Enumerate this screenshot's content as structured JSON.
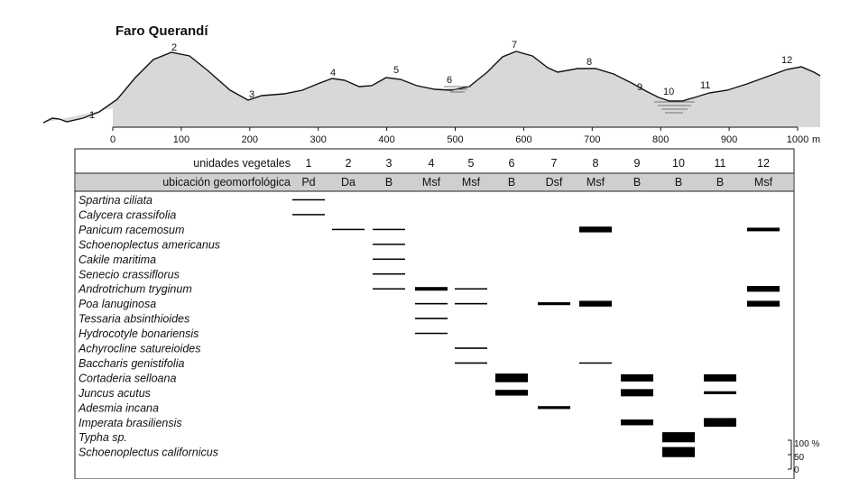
{
  "figure": {
    "title": "Faro Querandí",
    "distance_unit": "m",
    "x_ticks": [
      "0",
      "100",
      "200",
      "300",
      "400",
      "500",
      "600",
      "700",
      "800",
      "900",
      "1000"
    ],
    "profile_points": [
      "1",
      "2",
      "3",
      "4",
      "5",
      "6",
      "7",
      "8",
      "9",
      "10",
      "11",
      "12"
    ],
    "legend_scale": [
      "100 %",
      "50",
      "0"
    ]
  },
  "table": {
    "row_header_units": "unidades vegetales",
    "row_header_location": "ubicación geomorfológica",
    "units": [
      "1",
      "2",
      "3",
      "4",
      "5",
      "6",
      "7",
      "8",
      "9",
      "10",
      "11",
      "12"
    ],
    "locations": [
      "Pd",
      "Da",
      "B",
      "Msf",
      "Msf",
      "B",
      "Dsf",
      "Msf",
      "B",
      "B",
      "B",
      "Msf"
    ],
    "species": [
      "Spartina ciliata",
      "Calycera crassifolia",
      "Panicum racemosum",
      "Schoenoplectus americanus",
      "Cakile maritima",
      "Senecio crassiflorus",
      "Androtrichum tryginum",
      "Poa lanuginosa",
      "Tessaria absinthioides",
      "Hydrocotyle bonariensis",
      "Achyrocline satureioides",
      "Baccharis genistifolia",
      "Cortaderia selloana",
      "Juncus acutus",
      "Adesmia incana",
      "Imperata brasiliensis",
      "Typha sp.",
      "Schoenoplectus californicus"
    ]
  },
  "chart_data": {
    "type": "table",
    "value_meaning": "relative cover (%) of each species in each vegetation unit, shown as bar thickness",
    "cover": [
      {
        "species": "Spartina ciliata",
        "unit": "1",
        "cover_pct": 5
      },
      {
        "species": "Calycera crassifolia",
        "unit": "1",
        "cover_pct": 5
      },
      {
        "species": "Panicum racemosum",
        "unit": "2",
        "cover_pct": 5
      },
      {
        "species": "Panicum racemosum",
        "unit": "3",
        "cover_pct": 5
      },
      {
        "species": "Panicum racemosum",
        "unit": "8",
        "cover_pct": 40
      },
      {
        "species": "Panicum racemosum",
        "unit": "12",
        "cover_pct": 25
      },
      {
        "species": "Schoenoplectus americanus",
        "unit": "3",
        "cover_pct": 5
      },
      {
        "species": "Cakile maritima",
        "unit": "3",
        "cover_pct": 5
      },
      {
        "species": "Senecio crassiflorus",
        "unit": "3",
        "cover_pct": 5
      },
      {
        "species": "Androtrichum tryginum",
        "unit": "3",
        "cover_pct": 5
      },
      {
        "species": "Androtrichum tryginum",
        "unit": "4",
        "cover_pct": 25
      },
      {
        "species": "Androtrichum tryginum",
        "unit": "5",
        "cover_pct": 5
      },
      {
        "species": "Androtrichum tryginum",
        "unit": "12",
        "cover_pct": 40
      },
      {
        "species": "Poa lanuginosa",
        "unit": "4",
        "cover_pct": 10
      },
      {
        "species": "Poa lanuginosa",
        "unit": "5",
        "cover_pct": 10
      },
      {
        "species": "Poa lanuginosa",
        "unit": "7",
        "cover_pct": 20
      },
      {
        "species": "Poa lanuginosa",
        "unit": "8",
        "cover_pct": 40
      },
      {
        "species": "Poa lanuginosa",
        "unit": "12",
        "cover_pct": 40
      },
      {
        "species": "Tessaria absinthioides",
        "unit": "4",
        "cover_pct": 10
      },
      {
        "species": "Hydrocotyle bonariensis",
        "unit": "4",
        "cover_pct": 5
      },
      {
        "species": "Achyrocline satureioides",
        "unit": "5",
        "cover_pct": 10
      },
      {
        "species": "Baccharis genistifolia",
        "unit": "5",
        "cover_pct": 10
      },
      {
        "species": "Baccharis genistifolia",
        "unit": "8",
        "cover_pct": 5
      },
      {
        "species": "Cortaderia selloana",
        "unit": "6",
        "cover_pct": 60
      },
      {
        "species": "Cortaderia selloana",
        "unit": "9",
        "cover_pct": 50
      },
      {
        "species": "Cortaderia selloana",
        "unit": "11",
        "cover_pct": 50
      },
      {
        "species": "Juncus acutus",
        "unit": "6",
        "cover_pct": 40
      },
      {
        "species": "Juncus acutus",
        "unit": "9",
        "cover_pct": 50
      },
      {
        "species": "Juncus acutus",
        "unit": "11",
        "cover_pct": 20
      },
      {
        "species": "Adesmia incana",
        "unit": "7",
        "cover_pct": 20
      },
      {
        "species": "Imperata brasiliensis",
        "unit": "9",
        "cover_pct": 40
      },
      {
        "species": "Imperata brasiliensis",
        "unit": "11",
        "cover_pct": 60
      },
      {
        "species": "Typha sp.",
        "unit": "10",
        "cover_pct": 70
      },
      {
        "species": "Schoenoplectus californicus",
        "unit": "10",
        "cover_pct": 70
      }
    ],
    "legend_scale": [
      "100 %",
      "50",
      "0"
    ]
  }
}
